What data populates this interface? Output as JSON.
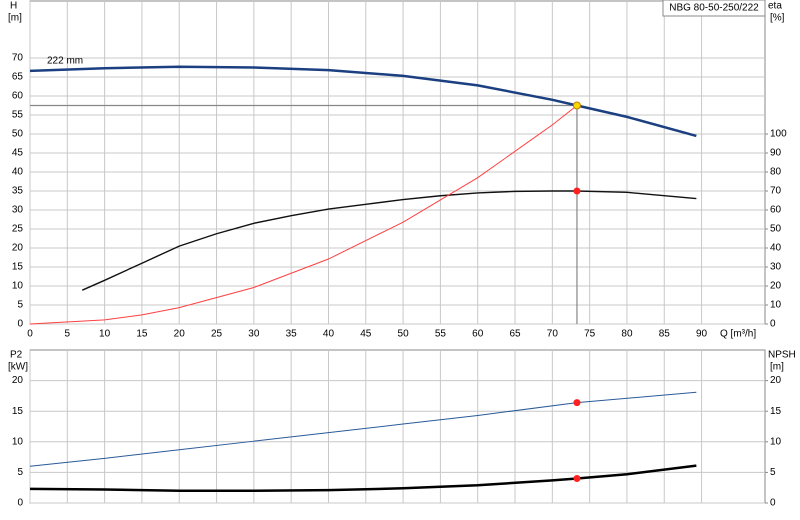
{
  "chart_data": [
    {
      "type": "line",
      "title": "NBG 80-50-250/222",
      "ylabel": "H",
      "yunit": "[m]",
      "y2label": "eta",
      "y2unit": "[%]",
      "xlabel": "Q [m³/h]",
      "xlim": [
        0,
        98.5
      ],
      "xticks": [
        0,
        5,
        10,
        15,
        20,
        25,
        30,
        35,
        40,
        45,
        50,
        55,
        60,
        65,
        70,
        75,
        80,
        85,
        90
      ],
      "ylim": [
        0,
        85
      ],
      "yticks": [
        0,
        5,
        10,
        15,
        20,
        25,
        30,
        35,
        40,
        45,
        50,
        55,
        60,
        65,
        70
      ],
      "y2lim": [
        0,
        170
      ],
      "y2ticks": [
        0,
        10,
        20,
        30,
        40,
        50,
        60,
        70,
        80,
        90,
        100
      ],
      "grid": true,
      "series": [
        {
          "name": "222 mm",
          "color": "#1b3f80",
          "width": 2.5,
          "x": [
            0,
            10,
            20,
            30,
            40,
            50,
            60,
            70,
            73.3,
            80,
            89.3
          ],
          "values": [
            66.6,
            67.3,
            67.7,
            67.5,
            66.8,
            65.3,
            62.8,
            59,
            57.5,
            54.5,
            49.5
          ]
        },
        {
          "color": "#111111",
          "width": 1.4,
          "axis": "y2",
          "x": [
            7,
            10,
            15,
            20,
            25,
            30,
            35,
            40,
            45,
            50,
            55,
            60,
            65,
            70,
            73.3,
            80,
            89.3
          ],
          "values": [
            17.8,
            23,
            32,
            41,
            47.5,
            53,
            57,
            60.5,
            63,
            65.5,
            67.5,
            69,
            69.8,
            70,
            70,
            69.3,
            66
          ]
        },
        {
          "color": "#ff4040",
          "width": 1,
          "x": [
            0,
            10,
            15,
            20,
            30,
            40,
            50,
            60,
            70,
            73.3
          ],
          "values": [
            0,
            1.1,
            2.4,
            4.3,
            9.6,
            17.1,
            26.8,
            38.5,
            52.4,
            57.5
          ]
        }
      ],
      "markers": [
        {
          "x": 73.3,
          "y": 57.5,
          "color": "#ffd700",
          "guide": true
        },
        {
          "x": 73.3,
          "y": 70,
          "axis": "y2",
          "color": "#ff2020"
        }
      ]
    },
    {
      "type": "line",
      "ylabel": "P2",
      "yunit": "[kW]",
      "y2label": "NPSH",
      "y2unit": "[m]",
      "xlim": [
        0,
        98.5
      ],
      "xticks": [
        0,
        5,
        10,
        15,
        20,
        25,
        30,
        35,
        40,
        45,
        50,
        55,
        60,
        65,
        70,
        75,
        80,
        85,
        90
      ],
      "ylim": [
        0,
        25
      ],
      "yticks": [
        0,
        5,
        10,
        15,
        20
      ],
      "y2lim": [
        0,
        25
      ],
      "y2ticks": [
        0,
        5,
        10,
        15,
        20
      ],
      "grid": true,
      "series": [
        {
          "color": "#2a5a9a",
          "width": 1,
          "x": [
            0,
            10,
            20,
            30,
            40,
            50,
            60,
            73.3,
            89.3
          ],
          "values": [
            6,
            7.3,
            8.7,
            10.1,
            11.5,
            12.9,
            14.3,
            16.4,
            18.1
          ]
        },
        {
          "color": "#000000",
          "width": 2.5,
          "axis": "y2",
          "x": [
            0,
            10,
            20,
            30,
            40,
            50,
            60,
            70,
            73.3,
            80,
            89.3
          ],
          "values": [
            2.3,
            2.2,
            2.0,
            2.0,
            2.1,
            2.4,
            2.9,
            3.7,
            4.0,
            4.7,
            6.1
          ]
        }
      ],
      "markers": [
        {
          "x": 73.3,
          "y": 16.4,
          "color": "#ff2020"
        },
        {
          "x": 73.3,
          "y": 4.0,
          "axis": "y2",
          "color": "#ff2020"
        }
      ]
    }
  ]
}
